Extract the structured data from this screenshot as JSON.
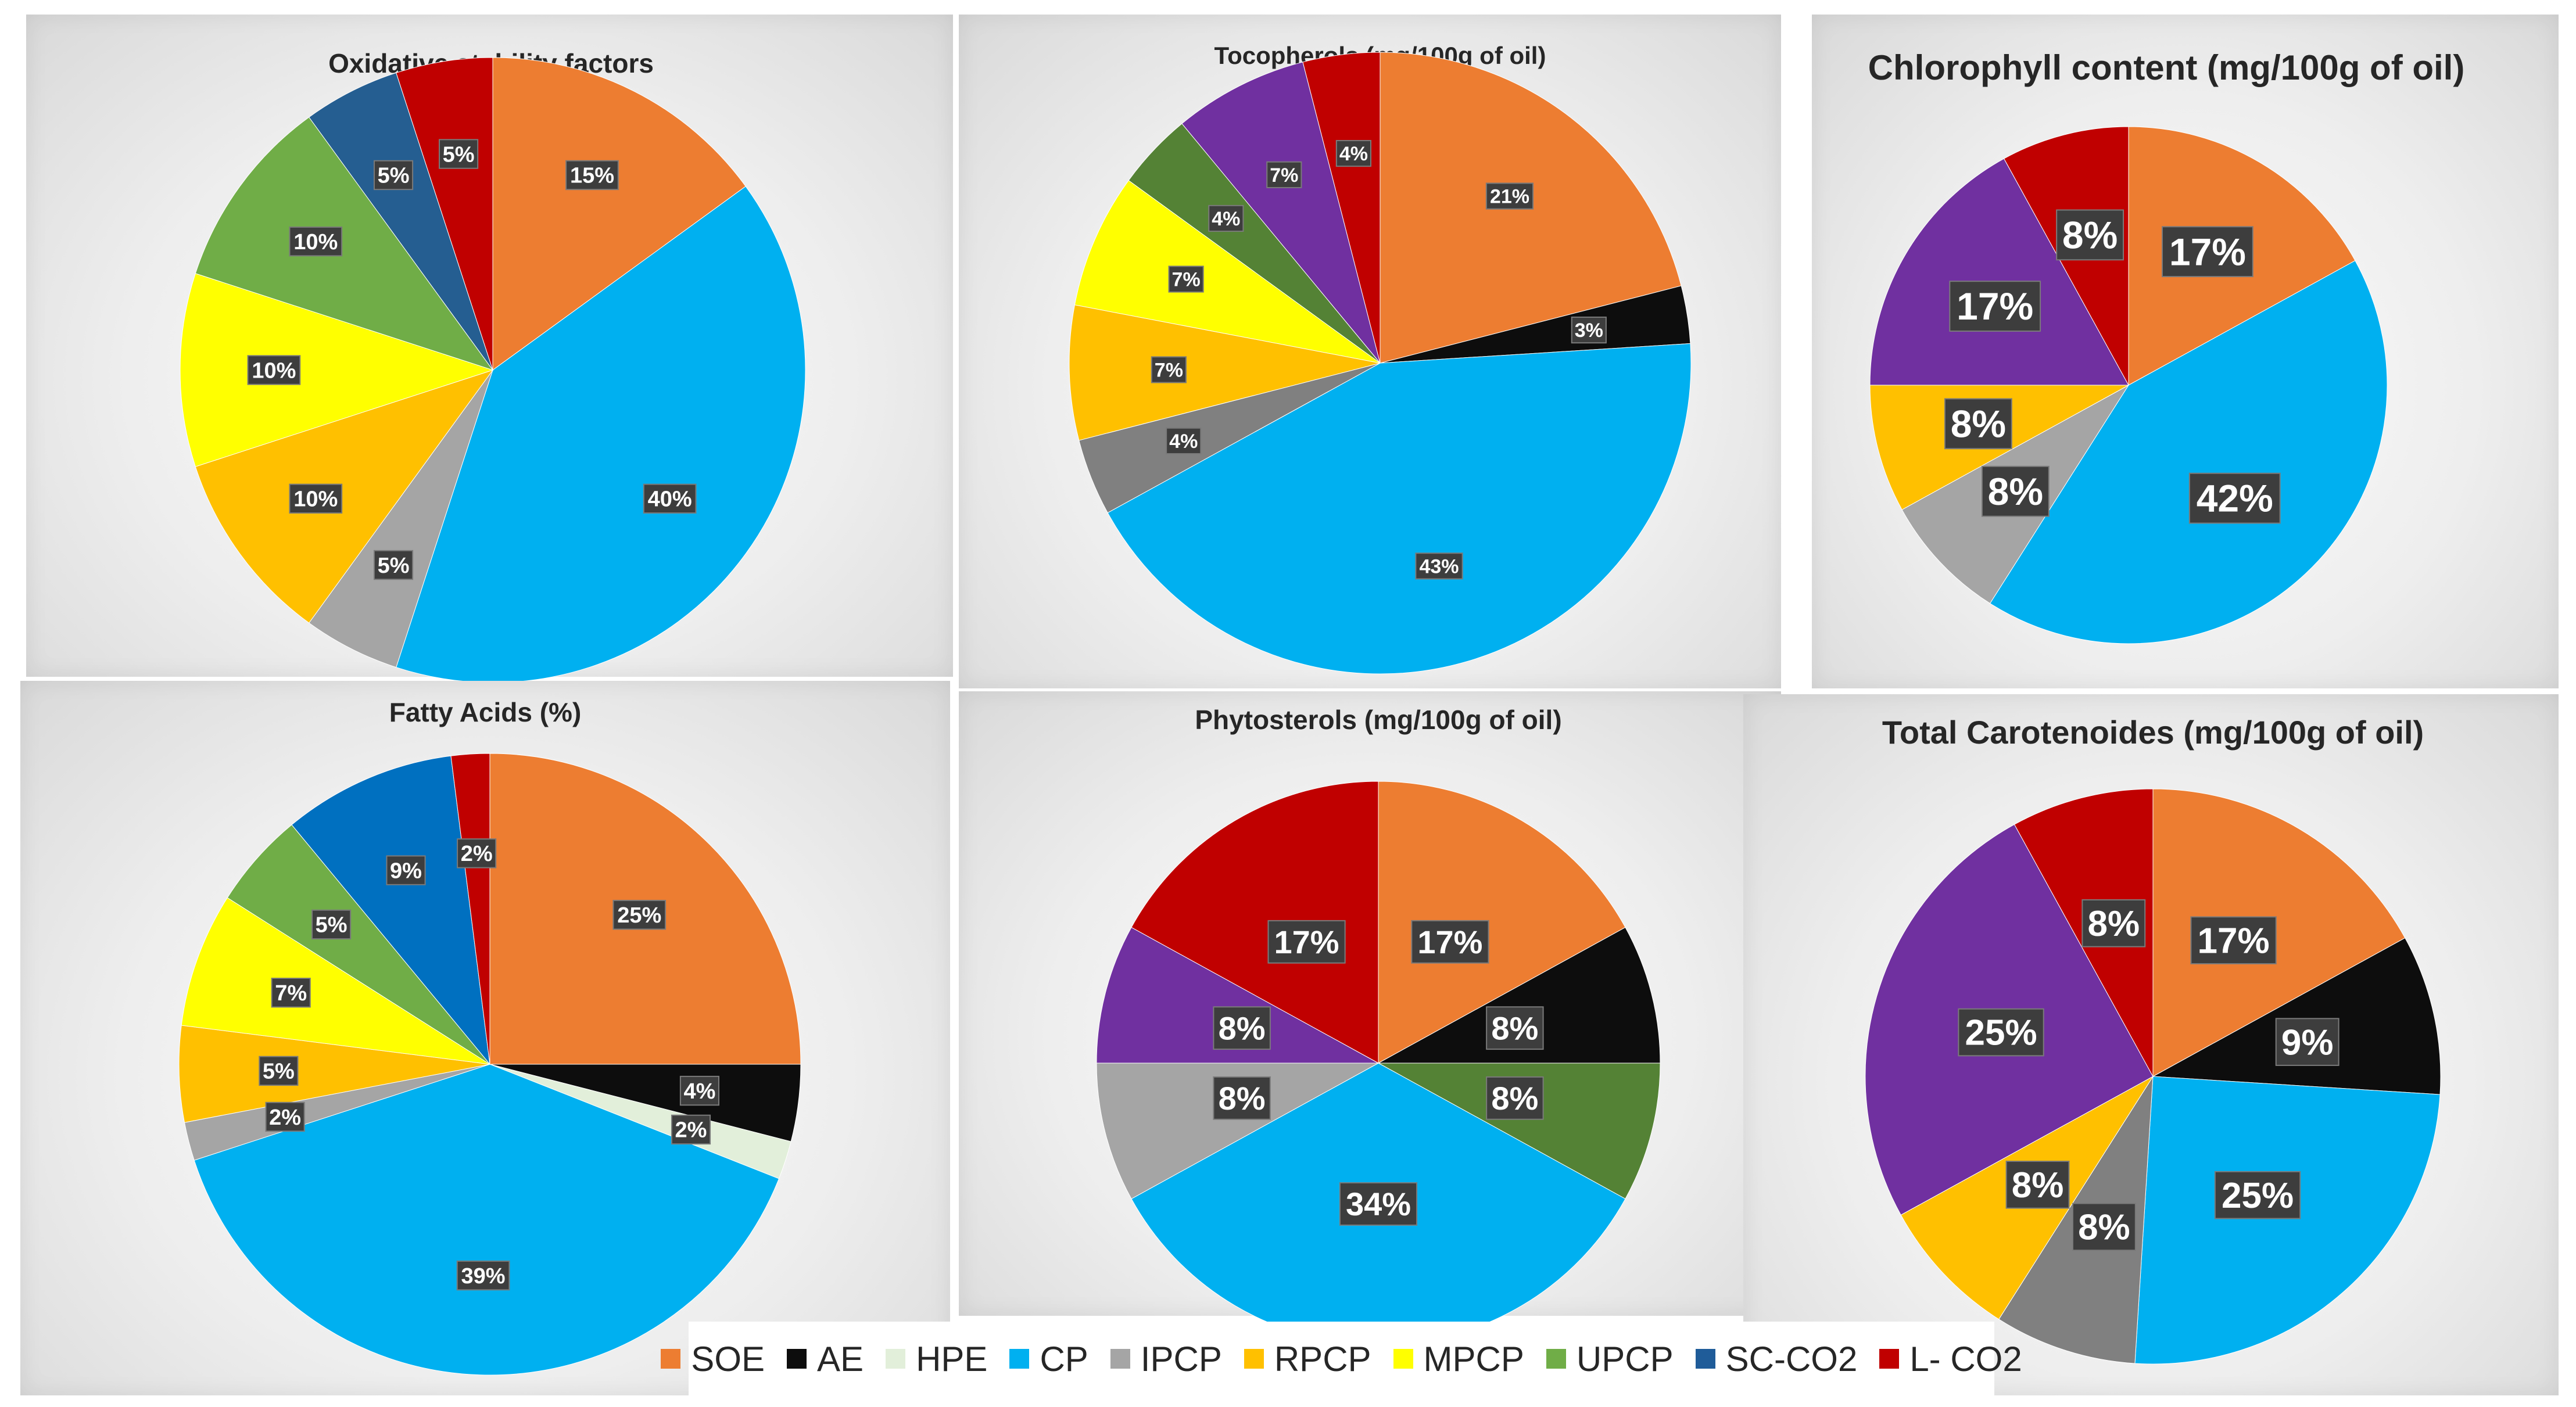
{
  "legend": [
    {
      "key": "SOE",
      "label": "SOE",
      "color": "#ED7D31"
    },
    {
      "key": "AE",
      "label": "AE",
      "color": "#0D0D0D"
    },
    {
      "key": "HPE",
      "label": "HPE",
      "color": "#E2EFDA"
    },
    {
      "key": "CP",
      "label": "CP",
      "color": "#00B0F0"
    },
    {
      "key": "IPCP",
      "label": "IPCP",
      "color": "#A5A5A5"
    },
    {
      "key": "RPCP",
      "label": "RPCP",
      "color": "#FFC000"
    },
    {
      "key": "MPCP",
      "label": "MPCP",
      "color": "#FFFF00"
    },
    {
      "key": "UPCP",
      "label": "UPCP",
      "color": "#70AD47"
    },
    {
      "key": "SC-CO2",
      "label": "SC-CO2",
      "color": "#1F5C99"
    },
    {
      "key": "L-CO2",
      "label": "L- CO2",
      "color": "#C00000"
    }
  ],
  "chart_data": [
    {
      "type": "pie",
      "title": "Oxidative stability factors",
      "slices": [
        {
          "key": "SOE",
          "value": 15,
          "label": "15%",
          "color": "#ED7D31"
        },
        {
          "key": "CP",
          "value": 40,
          "label": "40%",
          "color": "#00B0F0"
        },
        {
          "key": "IPCP",
          "value": 5,
          "label": "5%",
          "color": "#A5A5A5"
        },
        {
          "key": "RPCP",
          "value": 10,
          "label": "10%",
          "color": "#FFC000"
        },
        {
          "key": "MPCP",
          "value": 10,
          "label": "10%",
          "color": "#FFFF00"
        },
        {
          "key": "UPCP",
          "value": 10,
          "label": "10%",
          "color": "#70AD47"
        },
        {
          "key": "SC-CO2",
          "value": 5,
          "label": "5%",
          "color": "#255E91"
        },
        {
          "key": "L-CO2",
          "value": 5,
          "label": "5%",
          "color": "#C00000"
        }
      ]
    },
    {
      "type": "pie",
      "title": "Tocopherols (mg/100g of oil)",
      "slices": [
        {
          "key": "SOE",
          "value": 21,
          "label": "21%",
          "color": "#ED7D31"
        },
        {
          "key": "AE",
          "value": 3,
          "label": "3%",
          "color": "#0D0D0D"
        },
        {
          "key": "CP",
          "value": 43,
          "label": "43%",
          "color": "#00B0F0"
        },
        {
          "key": "IPCP",
          "value": 4,
          "label": "4%",
          "color": "#808080"
        },
        {
          "key": "RPCP",
          "value": 7,
          "label": "7%",
          "color": "#FFC000"
        },
        {
          "key": "MPCP",
          "value": 7,
          "label": "7%",
          "color": "#FFFF00"
        },
        {
          "key": "UPCP",
          "value": 4,
          "label": "4%",
          "color": "#548235"
        },
        {
          "key": "SC-CO2",
          "value": 7,
          "label": "7%",
          "color": "#7030A0"
        },
        {
          "key": "L-CO2",
          "value": 4,
          "label": "4%",
          "color": "#C00000"
        }
      ]
    },
    {
      "type": "pie",
      "title": "Chlorophyll content (mg/100g of oil)",
      "slices": [
        {
          "key": "SOE",
          "value": 17,
          "label": "17%",
          "color": "#ED7D31"
        },
        {
          "key": "CP",
          "value": 42,
          "label": "42%",
          "color": "#00B0F0"
        },
        {
          "key": "IPCP",
          "value": 8,
          "label": "8%",
          "color": "#A5A5A5"
        },
        {
          "key": "RPCP",
          "value": 8,
          "label": "8%",
          "color": "#FFC000"
        },
        {
          "key": "SC-CO2",
          "value": 17,
          "label": "17%",
          "color": "#7030A0"
        },
        {
          "key": "L-CO2",
          "value": 8,
          "label": "8%",
          "color": "#C00000"
        }
      ]
    },
    {
      "type": "pie",
      "title": "Fatty Acids (%)",
      "slices": [
        {
          "key": "SOE",
          "value": 25,
          "label": "25%",
          "color": "#ED7D31"
        },
        {
          "key": "AE",
          "value": 4,
          "label": "4%",
          "color": "#0D0D0D"
        },
        {
          "key": "HPE",
          "value": 2,
          "label": "2%",
          "color": "#E2EFDA"
        },
        {
          "key": "CP",
          "value": 39,
          "label": "39%",
          "color": "#00B0F0"
        },
        {
          "key": "IPCP",
          "value": 2,
          "label": "2%",
          "color": "#A5A5A5"
        },
        {
          "key": "RPCP",
          "value": 5,
          "label": "5%",
          "color": "#FFC000"
        },
        {
          "key": "MPCP",
          "value": 7,
          "label": "7%",
          "color": "#FFFF00"
        },
        {
          "key": "UPCP",
          "value": 5,
          "label": "5%",
          "color": "#70AD47"
        },
        {
          "key": "SC-CO2",
          "value": 9,
          "label": "9%",
          "color": "#0070C0"
        },
        {
          "key": "L-CO2",
          "value": 2,
          "label": "2%",
          "color": "#C00000"
        }
      ]
    },
    {
      "type": "pie",
      "title": "Phytosterols (mg/100g of oil)",
      "slices": [
        {
          "key": "SOE",
          "value": 17,
          "label": "17%",
          "color": "#ED7D31"
        },
        {
          "key": "AE",
          "value": 8,
          "label": "8%",
          "color": "#0D0D0D"
        },
        {
          "key": "UPCP",
          "value": 8,
          "label": "8%",
          "color": "#548235"
        },
        {
          "key": "CP",
          "value": 34,
          "label": "34%",
          "color": "#00B0F0"
        },
        {
          "key": "IPCP",
          "value": 8,
          "label": "8%",
          "color": "#A5A5A5"
        },
        {
          "key": "SC-CO2",
          "value": 8,
          "label": "8%",
          "color": "#7030A0"
        },
        {
          "key": "L-CO2",
          "value": 17,
          "label": "17%",
          "color": "#C00000"
        }
      ]
    },
    {
      "type": "pie",
      "title": "Total Carotenoides (mg/100g of oil)",
      "slices": [
        {
          "key": "SOE",
          "value": 17,
          "label": "17%",
          "color": "#ED7D31"
        },
        {
          "key": "AE",
          "value": 9,
          "label": "9%",
          "color": "#0D0D0D"
        },
        {
          "key": "CP",
          "value": 25,
          "label": "25%",
          "color": "#00B0F0"
        },
        {
          "key": "IPCP",
          "value": 8,
          "label": "8%",
          "color": "#808080"
        },
        {
          "key": "RPCP",
          "value": 8,
          "label": "8%",
          "color": "#FFC000"
        },
        {
          "key": "SC-CO2",
          "value": 25,
          "label": "25%",
          "color": "#7030A0"
        },
        {
          "key": "L-CO2",
          "value": 8,
          "label": "8%",
          "color": "#C00000"
        }
      ]
    }
  ]
}
